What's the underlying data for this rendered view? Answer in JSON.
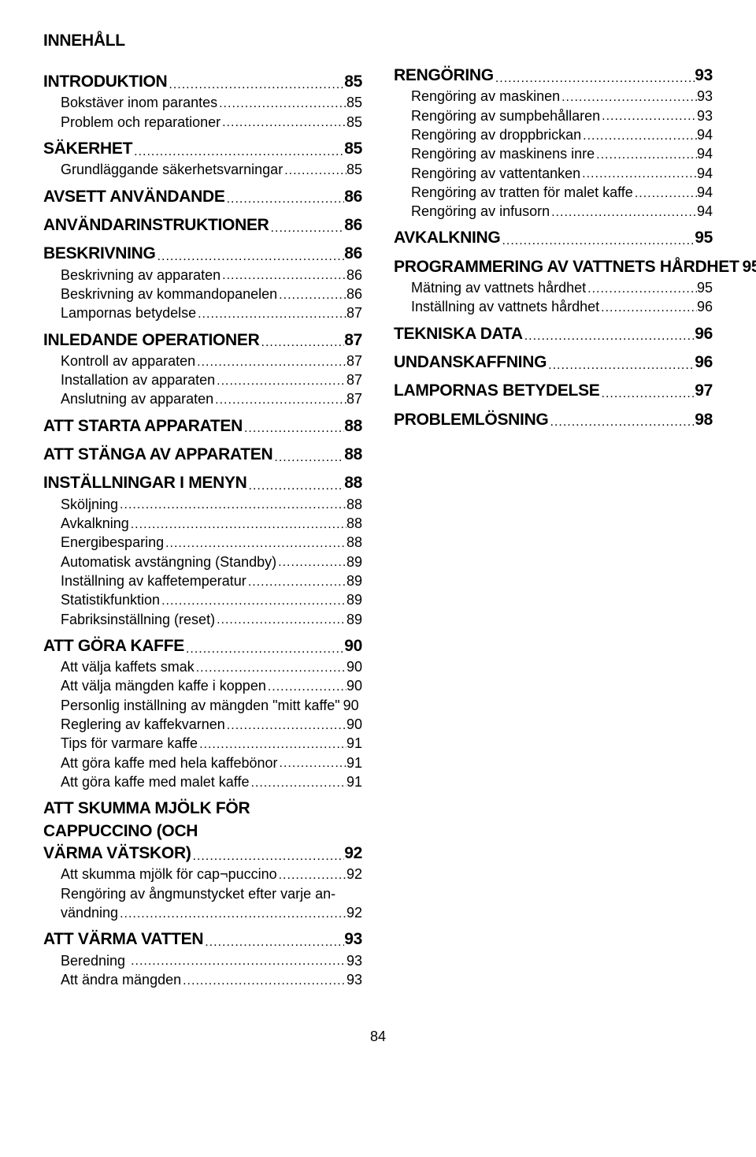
{
  "title": "INNEHÅLL",
  "page_number": "84",
  "left": [
    {
      "t": "section",
      "label": "INTRODUKTION",
      "page": "85"
    },
    {
      "t": "child",
      "label": "Bokstäver inom parantes",
      "page": "85"
    },
    {
      "t": "child",
      "label": "Problem och reparationer",
      "page": "85"
    },
    {
      "t": "section",
      "label": "SÄKERHET",
      "page": "85"
    },
    {
      "t": "child",
      "label": "Grundläggande säkerhetsvarningar",
      "page": "85"
    },
    {
      "t": "section",
      "label": "AVSETT ANVÄNDANDE",
      "page": "86"
    },
    {
      "t": "section",
      "label": "ANVÄNDARINSTRUKTIONER",
      "page": "86"
    },
    {
      "t": "section",
      "label": "BESKRIVNING",
      "page": "86"
    },
    {
      "t": "child",
      "label": "Beskrivning av apparaten",
      "page": "86"
    },
    {
      "t": "child",
      "label": "Beskrivning av kommandopanelen",
      "page": "86"
    },
    {
      "t": "child",
      "label": "Lampornas betydelse",
      "page": "87"
    },
    {
      "t": "section",
      "label": "INLEDANDE OPERATIONER",
      "page": "87"
    },
    {
      "t": "child",
      "label": "Kontroll av apparaten",
      "page": "87"
    },
    {
      "t": "child",
      "label": "Installation av apparaten",
      "page": "87"
    },
    {
      "t": "child",
      "label": "Anslutning av apparaten",
      "page": "87"
    },
    {
      "t": "section",
      "label": "ATT STARTA APPARATEN",
      "page": "88"
    },
    {
      "t": "section",
      "label": "ATT STÄNGA AV APPARATEN",
      "page": "88"
    },
    {
      "t": "section",
      "label": "INSTÄLLNINGAR I MENYN",
      "page": "88"
    },
    {
      "t": "child",
      "label": "Sköljning",
      "page": "88"
    },
    {
      "t": "child",
      "label": "Avkalkning",
      "page": "88"
    },
    {
      "t": "child",
      "label": "Energibesparing",
      "page": "88"
    },
    {
      "t": "child",
      "label": "Automatisk avstängning (Standby)",
      "page": "89"
    },
    {
      "t": "child",
      "label": "Inställning av kaffetemperatur",
      "page": "89"
    },
    {
      "t": "child",
      "label": "Statistikfunktion",
      "page": "89"
    },
    {
      "t": "child",
      "label": "Fabriksinställning (reset)",
      "page": "89"
    },
    {
      "t": "section",
      "label": "ATT GÖRA KAFFE",
      "page": "90"
    },
    {
      "t": "child",
      "label": "Att välja kaffets smak",
      "page": "90"
    },
    {
      "t": "child",
      "label": "Att välja mängden kaffe i koppen",
      "page": "90"
    },
    {
      "t": "child",
      "label": "Personlig inställning av mängden \"mitt kaffe\"",
      "page": "90",
      "nodots": true
    },
    {
      "t": "child",
      "label": "Reglering av kaffekvarnen",
      "page": "90"
    },
    {
      "t": "child",
      "label": "Tips för varmare kaffe",
      "page": "91"
    },
    {
      "t": "child",
      "label": "Att göra kaffe med hela kaffebönor",
      "page": "91"
    },
    {
      "t": "child",
      "label": "Att göra kaffe med malet kaffe",
      "page": "91"
    },
    {
      "t": "sectionml",
      "lines": [
        "ATT SKUMMA MJÖLK FÖR CAPPUCCINO (OCH"
      ],
      "last": "VÄRMA VÄTSKOR)",
      "page": "92",
      "no_indent": true
    },
    {
      "t": "child",
      "label": "Att skumma mjölk för cap¬puccino",
      "page": "92"
    },
    {
      "t": "childml",
      "lines": [
        "Rengöring av ångmunstycket efter varje an-"
      ],
      "last": "vändning",
      "page": "92"
    },
    {
      "t": "section",
      "label": "ATT VÄRMA VATTEN",
      "page": "93"
    },
    {
      "t": "child",
      "label": "Beredning ",
      "page": "93"
    },
    {
      "t": "child",
      "label": "Att ändra mängden",
      "page": "93"
    }
  ],
  "right": [
    {
      "t": "section_first",
      "label": "RENGÖRING",
      "page": "93"
    },
    {
      "t": "child",
      "label": "Rengöring av maskinen",
      "page": "93"
    },
    {
      "t": "child",
      "label": "Rengöring av sumpbehållaren",
      "page": "93"
    },
    {
      "t": "child",
      "label": "Rengöring av droppbrickan",
      "page": "94"
    },
    {
      "t": "child",
      "label": "Rengöring av maskinens inre",
      "page": "94"
    },
    {
      "t": "child",
      "label": "Rengöring av vattentanken",
      "page": "94"
    },
    {
      "t": "child",
      "label": "Rengöring av tratten för malet kaffe",
      "page": "94"
    },
    {
      "t": "child",
      "label": "Rengöring av infusorn",
      "page": "94"
    },
    {
      "t": "section",
      "label": "AVKALKNING",
      "page": "95"
    },
    {
      "t": "section",
      "label": "PROGRAMMERING AV VATTNETS HÅRDHET",
      "page": "95",
      "nodots": true
    },
    {
      "t": "child",
      "label": "Mätning av vattnets hårdhet",
      "page": "95"
    },
    {
      "t": "child",
      "label": "Inställning av vattnets hårdhet",
      "page": "96"
    },
    {
      "t": "section",
      "label": "TEKNISKA DATA",
      "page": "96"
    },
    {
      "t": "section",
      "label": "UNDANSKAFFNING",
      "page": "96"
    },
    {
      "t": "section",
      "label": "LAMPORNAS BETYDELSE",
      "page": "97"
    },
    {
      "t": "section",
      "label": "PROBLEMLÖSNING",
      "page": "98"
    }
  ]
}
